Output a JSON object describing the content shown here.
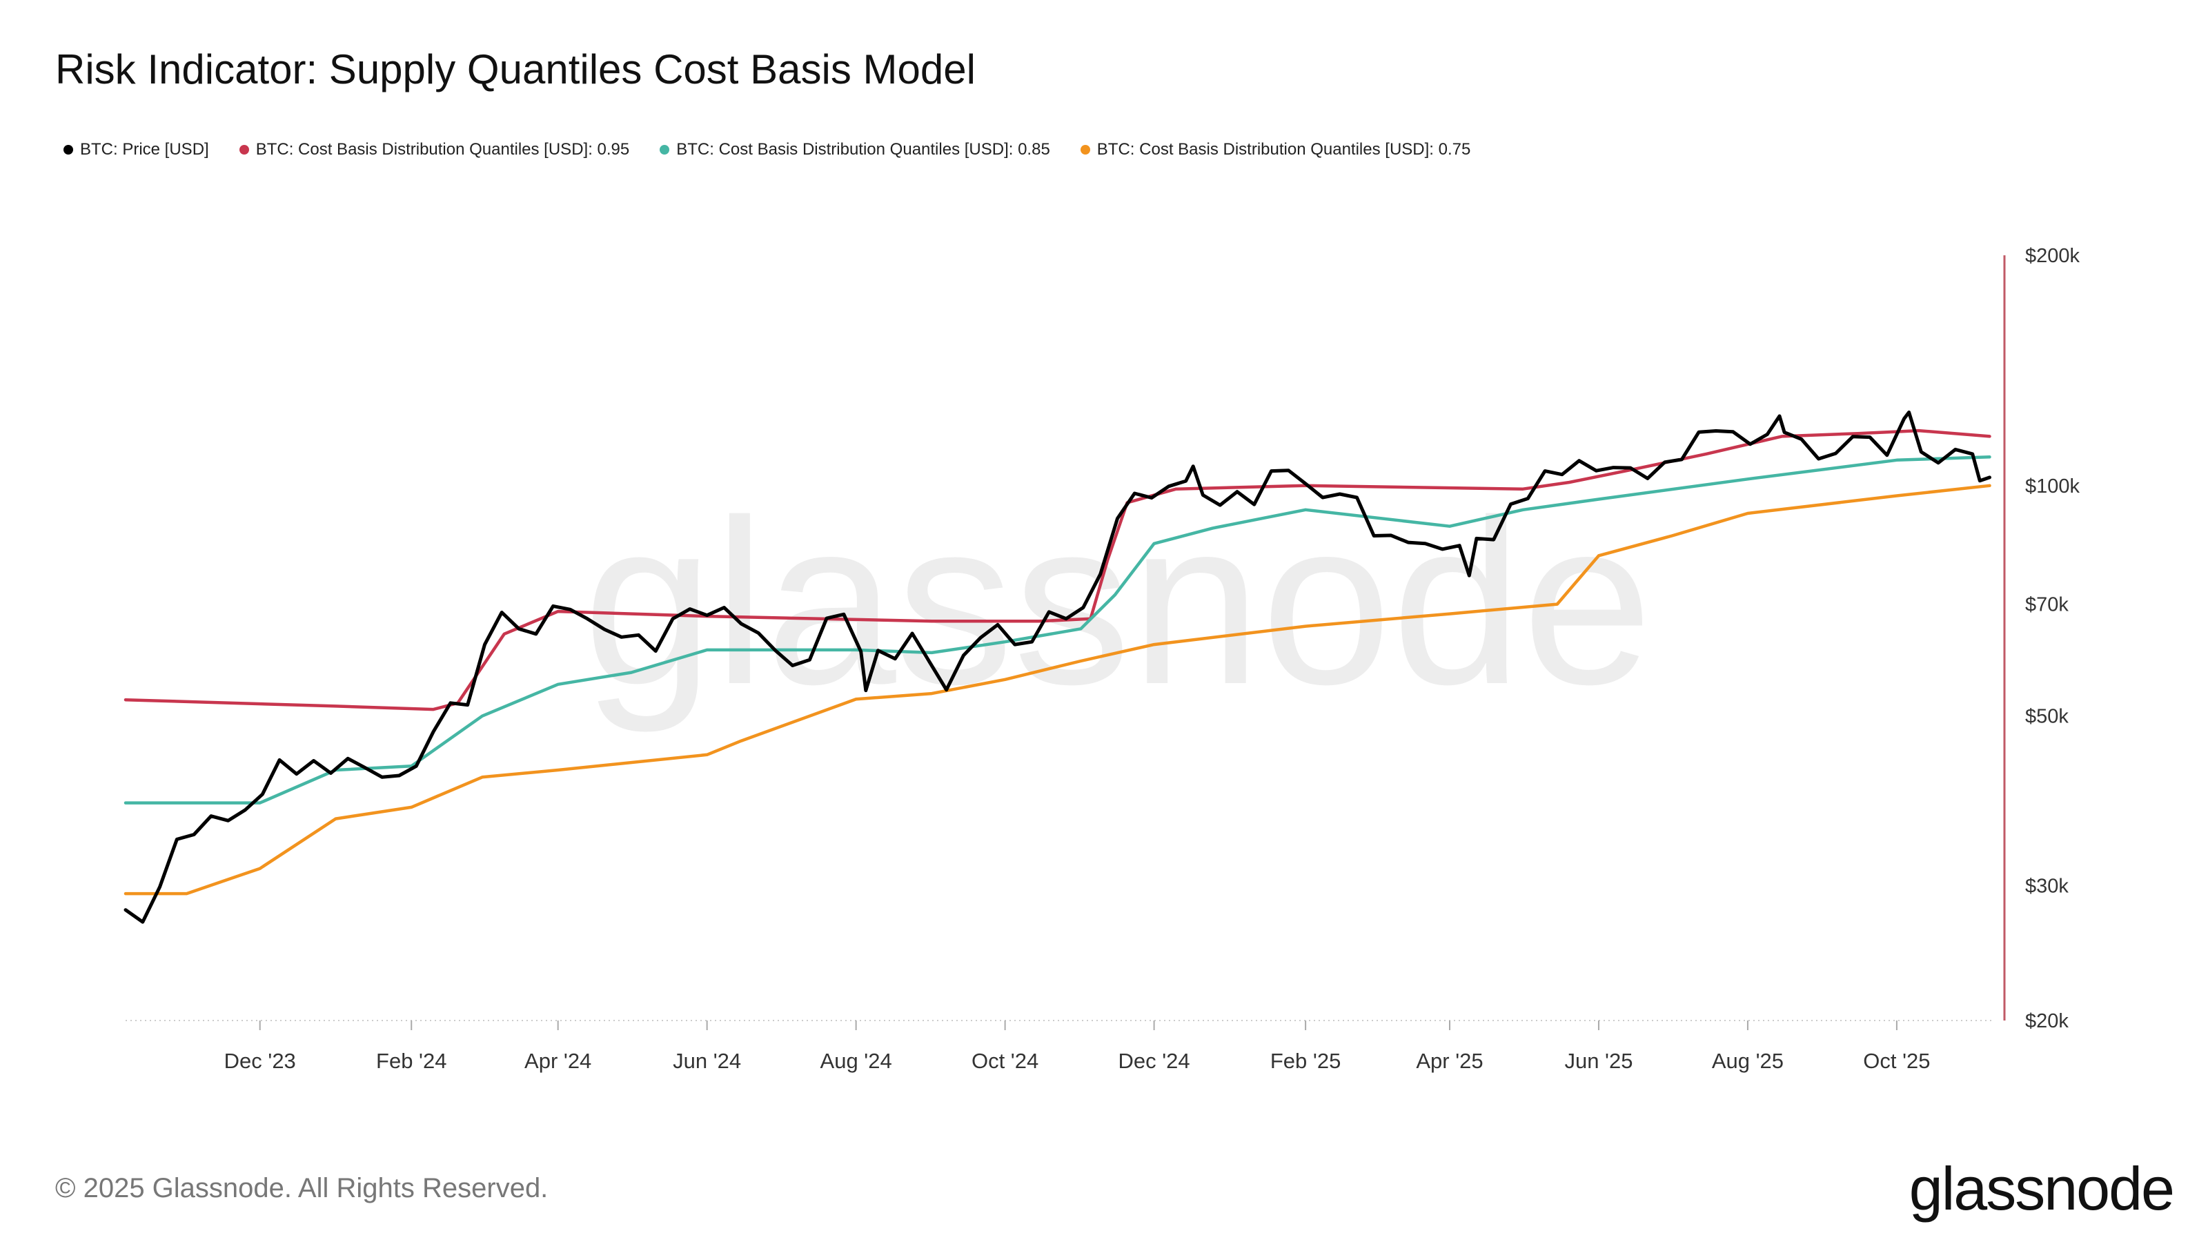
{
  "title": "Risk Indicator: Supply Quantiles Cost Basis Model",
  "footer": "© 2025 Glassnode. All Rights Reserved.",
  "logo": "glassnode",
  "watermark": "glassnode",
  "chart_data": {
    "type": "line",
    "title": "Risk Indicator: Supply Quantiles Cost Basis Model",
    "yscale": "log",
    "ylim": [
      20000,
      200000
    ],
    "xlim": [
      "2023-10-07",
      "2025-11-09"
    ],
    "grid": false,
    "legend_placement": "top-left",
    "y_ticks": [
      {
        "value": 200000,
        "label": "$200k"
      },
      {
        "value": 100000,
        "label": "$100k"
      },
      {
        "value": 70000,
        "label": "$70k"
      },
      {
        "value": 50000,
        "label": "$50k"
      },
      {
        "value": 30000,
        "label": "$30k"
      },
      {
        "value": 20000,
        "label": "$20k"
      }
    ],
    "x_ticks": [
      {
        "date": "2023-12-01",
        "label": "Dec '23"
      },
      {
        "date": "2024-02-01",
        "label": "Feb '24"
      },
      {
        "date": "2024-04-01",
        "label": "Apr '24"
      },
      {
        "date": "2024-06-01",
        "label": "Jun '24"
      },
      {
        "date": "2024-08-01",
        "label": "Aug '24"
      },
      {
        "date": "2024-10-01",
        "label": "Oct '24"
      },
      {
        "date": "2024-12-01",
        "label": "Dec '24"
      },
      {
        "date": "2025-02-01",
        "label": "Feb '25"
      },
      {
        "date": "2025-04-01",
        "label": "Apr '25"
      },
      {
        "date": "2025-06-01",
        "label": "Jun '25"
      },
      {
        "date": "2025-08-01",
        "label": "Aug '25"
      },
      {
        "date": "2025-10-01",
        "label": "Oct '25"
      }
    ],
    "series": [
      {
        "name": "BTC: Price [USD]",
        "color": "#000000",
        "points": [
          [
            "2023-10-07",
            27900
          ],
          [
            "2023-10-14",
            26900
          ],
          [
            "2023-10-21",
            29900
          ],
          [
            "2023-10-28",
            34500
          ],
          [
            "2023-11-04",
            35000
          ],
          [
            "2023-11-11",
            37000
          ],
          [
            "2023-11-18",
            36500
          ],
          [
            "2023-11-25",
            37700
          ],
          [
            "2023-12-02",
            39500
          ],
          [
            "2023-12-09",
            43800
          ],
          [
            "2023-12-16",
            42000
          ],
          [
            "2023-12-23",
            43700
          ],
          [
            "2023-12-30",
            42100
          ],
          [
            "2024-01-06",
            44000
          ],
          [
            "2024-01-13",
            42800
          ],
          [
            "2024-01-20",
            41600
          ],
          [
            "2024-01-27",
            41800
          ],
          [
            "2024-02-03",
            43000
          ],
          [
            "2024-02-10",
            47700
          ],
          [
            "2024-02-17",
            52000
          ],
          [
            "2024-02-24",
            51700
          ],
          [
            "2024-03-02",
            62000
          ],
          [
            "2024-03-09",
            68300
          ],
          [
            "2024-03-16",
            65000
          ],
          [
            "2024-03-23",
            64000
          ],
          [
            "2024-03-30",
            69600
          ],
          [
            "2024-04-06",
            68900
          ],
          [
            "2024-04-13",
            67000
          ],
          [
            "2024-04-20",
            64900
          ],
          [
            "2024-04-27",
            63400
          ],
          [
            "2024-05-04",
            63800
          ],
          [
            "2024-05-11",
            60800
          ],
          [
            "2024-05-18",
            67000
          ],
          [
            "2024-05-25",
            69000
          ],
          [
            "2024-06-01",
            67700
          ],
          [
            "2024-06-08",
            69300
          ],
          [
            "2024-06-15",
            66000
          ],
          [
            "2024-06-22",
            64200
          ],
          [
            "2024-06-29",
            60900
          ],
          [
            "2024-07-06",
            58200
          ],
          [
            "2024-07-13",
            59200
          ],
          [
            "2024-07-20",
            67100
          ],
          [
            "2024-07-27",
            67900
          ],
          [
            "2024-08-03",
            60700
          ],
          [
            "2024-08-05",
            54000
          ],
          [
            "2024-08-10",
            60900
          ],
          [
            "2024-08-17",
            59400
          ],
          [
            "2024-08-24",
            64100
          ],
          [
            "2024-08-31",
            58900
          ],
          [
            "2024-09-07",
            54100
          ],
          [
            "2024-09-14",
            60000
          ],
          [
            "2024-09-21",
            63300
          ],
          [
            "2024-09-28",
            65800
          ],
          [
            "2024-10-05",
            62000
          ],
          [
            "2024-10-12",
            62500
          ],
          [
            "2024-10-19",
            68400
          ],
          [
            "2024-10-26",
            67000
          ],
          [
            "2024-11-02",
            69300
          ],
          [
            "2024-11-09",
            76600
          ],
          [
            "2024-11-16",
            90600
          ],
          [
            "2024-11-23",
            97700
          ],
          [
            "2024-11-30",
            96400
          ],
          [
            "2024-12-07",
            99800
          ],
          [
            "2024-12-14",
            101400
          ],
          [
            "2024-12-17",
            106000
          ],
          [
            "2024-12-21",
            97200
          ],
          [
            "2024-12-28",
            94300
          ],
          [
            "2025-01-04",
            98200
          ],
          [
            "2025-01-11",
            94500
          ],
          [
            "2025-01-18",
            104500
          ],
          [
            "2025-01-25",
            104700
          ],
          [
            "2025-02-01",
            100600
          ],
          [
            "2025-02-08",
            96500
          ],
          [
            "2025-02-15",
            97500
          ],
          [
            "2025-02-22",
            96500
          ],
          [
            "2025-03-01",
            86000
          ],
          [
            "2025-03-08",
            86100
          ],
          [
            "2025-03-15",
            84300
          ],
          [
            "2025-03-22",
            84000
          ],
          [
            "2025-03-29",
            82600
          ],
          [
            "2025-04-05",
            83500
          ],
          [
            "2025-04-09",
            76300
          ],
          [
            "2025-04-12",
            85300
          ],
          [
            "2025-04-19",
            85000
          ],
          [
            "2025-04-26",
            94600
          ],
          [
            "2025-05-03",
            96200
          ],
          [
            "2025-05-10",
            104500
          ],
          [
            "2025-05-17",
            103400
          ],
          [
            "2025-05-24",
            107800
          ],
          [
            "2025-05-31",
            104600
          ],
          [
            "2025-06-07",
            105600
          ],
          [
            "2025-06-14",
            105500
          ],
          [
            "2025-06-21",
            102200
          ],
          [
            "2025-06-28",
            107300
          ],
          [
            "2025-07-05",
            108200
          ],
          [
            "2025-07-12",
            117500
          ],
          [
            "2025-07-19",
            117900
          ],
          [
            "2025-07-26",
            117600
          ],
          [
            "2025-08-02",
            113300
          ],
          [
            "2025-08-09",
            116700
          ],
          [
            "2025-08-14",
            123300
          ],
          [
            "2025-08-16",
            117400
          ],
          [
            "2025-08-23",
            115000
          ],
          [
            "2025-08-30",
            108400
          ],
          [
            "2025-09-06",
            110200
          ],
          [
            "2025-09-13",
            115900
          ],
          [
            "2025-09-20",
            115700
          ],
          [
            "2025-09-27",
            109600
          ],
          [
            "2025-10-04",
            122300
          ],
          [
            "2025-10-06",
            124700
          ],
          [
            "2025-10-11",
            110700
          ],
          [
            "2025-10-18",
            107100
          ],
          [
            "2025-10-25",
            111500
          ],
          [
            "2025-11-01",
            110000
          ],
          [
            "2025-11-04",
            101500
          ],
          [
            "2025-11-08",
            102500
          ]
        ]
      },
      {
        "name": "BTC: Cost Basis Distribution Quantiles [USD]: 0.95",
        "color": "#c8364e",
        "points": [
          [
            "2023-10-07",
            52500
          ],
          [
            "2024-01-01",
            51500
          ],
          [
            "2024-02-10",
            51000
          ],
          [
            "2024-02-20",
            52000
          ],
          [
            "2024-03-01",
            58000
          ],
          [
            "2024-03-10",
            64000
          ],
          [
            "2024-04-01",
            68500
          ],
          [
            "2024-06-01",
            67500
          ],
          [
            "2024-09-01",
            66500
          ],
          [
            "2024-10-15",
            66500
          ],
          [
            "2024-11-05",
            67000
          ],
          [
            "2024-11-12",
            80000
          ],
          [
            "2024-11-20",
            95000
          ],
          [
            "2024-12-10",
            99000
          ],
          [
            "2025-02-01",
            100000
          ],
          [
            "2025-05-01",
            99000
          ],
          [
            "2025-05-20",
            101000
          ],
          [
            "2025-06-15",
            105000
          ],
          [
            "2025-07-15",
            110000
          ],
          [
            "2025-08-15",
            116000
          ],
          [
            "2025-09-15",
            117000
          ],
          [
            "2025-10-10",
            118000
          ],
          [
            "2025-11-08",
            116000
          ]
        ]
      },
      {
        "name": "BTC: Cost Basis Distribution Quantiles [USD]: 0.85",
        "color": "#45b6a4",
        "points": [
          [
            "2023-10-07",
            38500
          ],
          [
            "2023-12-01",
            38500
          ],
          [
            "2024-01-01",
            42500
          ],
          [
            "2024-02-01",
            43000
          ],
          [
            "2024-03-01",
            50000
          ],
          [
            "2024-04-01",
            55000
          ],
          [
            "2024-05-01",
            57000
          ],
          [
            "2024-06-01",
            61000
          ],
          [
            "2024-07-01",
            61000
          ],
          [
            "2024-08-01",
            61000
          ],
          [
            "2024-09-01",
            60500
          ],
          [
            "2024-10-01",
            62500
          ],
          [
            "2024-11-01",
            65000
          ],
          [
            "2024-11-15",
            72000
          ],
          [
            "2024-12-01",
            84000
          ],
          [
            "2024-12-25",
            88000
          ],
          [
            "2025-02-01",
            93000
          ],
          [
            "2025-04-01",
            88500
          ],
          [
            "2025-05-01",
            93000
          ],
          [
            "2025-06-01",
            96000
          ],
          [
            "2025-08-01",
            102000
          ],
          [
            "2025-10-01",
            108000
          ],
          [
            "2025-11-08",
            109000
          ]
        ]
      },
      {
        "name": "BTC: Cost Basis Distribution Quantiles [USD]: 0.75",
        "color": "#f2931e",
        "points": [
          [
            "2023-10-07",
            29300
          ],
          [
            "2023-11-01",
            29300
          ],
          [
            "2023-12-01",
            31600
          ],
          [
            "2024-01-01",
            36700
          ],
          [
            "2024-02-01",
            38000
          ],
          [
            "2024-03-01",
            41600
          ],
          [
            "2024-04-01",
            42500
          ],
          [
            "2024-06-01",
            44500
          ],
          [
            "2024-06-15",
            46400
          ],
          [
            "2024-08-01",
            52600
          ],
          [
            "2024-09-01",
            53500
          ],
          [
            "2024-10-01",
            55800
          ],
          [
            "2024-11-01",
            59000
          ],
          [
            "2024-12-01",
            62000
          ],
          [
            "2025-02-01",
            65500
          ],
          [
            "2025-04-01",
            68000
          ],
          [
            "2025-05-15",
            70000
          ],
          [
            "2025-06-01",
            81000
          ],
          [
            "2025-07-01",
            86000
          ],
          [
            "2025-08-01",
            92000
          ],
          [
            "2025-10-01",
            97000
          ],
          [
            "2025-11-08",
            100000
          ]
        ]
      }
    ]
  }
}
